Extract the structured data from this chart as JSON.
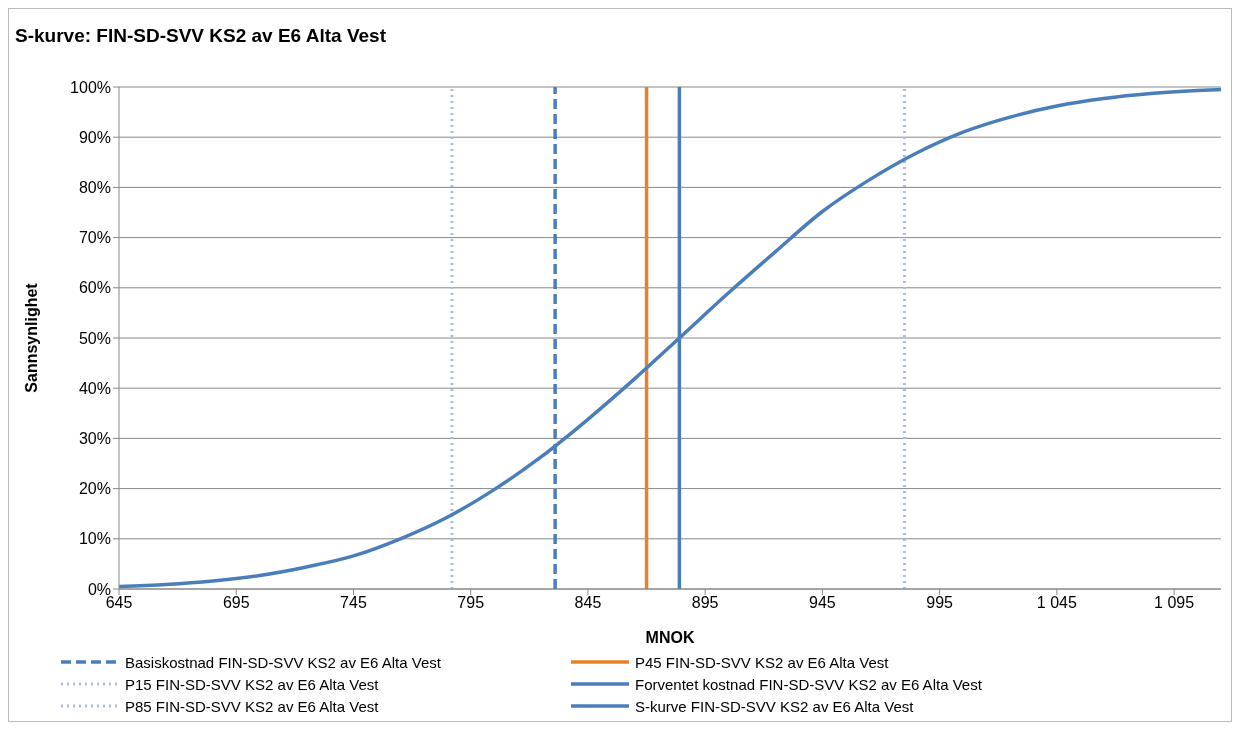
{
  "chart_data": {
    "type": "line",
    "title": "S-kurve: FIN-SD-SVV KS2 av E6 Alta Vest",
    "xlabel": "MNOK",
    "ylabel": "Sannsynlighet",
    "xlim": [
      645,
      1115
    ],
    "xticks": [
      645,
      695,
      745,
      795,
      845,
      895,
      945,
      995,
      {
        "value": 1045,
        "label": "1 045"
      },
      {
        "value": 1095,
        "label": "1 095"
      }
    ],
    "ylim": [
      0,
      100
    ],
    "yticks": [
      {
        "value": 0,
        "label": "0%"
      },
      {
        "value": 10,
        "label": "10%"
      },
      {
        "value": 20,
        "label": "20%"
      },
      {
        "value": 30,
        "label": "30%"
      },
      {
        "value": 40,
        "label": "40%"
      },
      {
        "value": 50,
        "label": "50%"
      },
      {
        "value": 60,
        "label": "60%"
      },
      {
        "value": 70,
        "label": "70%"
      },
      {
        "value": 80,
        "label": "80%"
      },
      {
        "value": 90,
        "label": "90%"
      },
      {
        "value": 100,
        "label": "100%"
      }
    ],
    "grid": "y",
    "legend": "bottom",
    "marker": "none",
    "series": [
      {
        "name": "Basiskostnad FIN-SD-SVV KS2 av E6  Alta Vest",
        "color": "#4a7ebb",
        "line_style": "dashed",
        "x": [
          831,
          831
        ],
        "values": [
          0,
          100
        ]
      },
      {
        "name": "P15 FIN-SD-SVV KS2 av E6  Alta Vest",
        "color": "#a7bfde",
        "line_style": "dotted",
        "x": [
          787,
          787
        ],
        "values": [
          0,
          100
        ]
      },
      {
        "name": "P85 FIN-SD-SVV KS2 av E6  Alta Vest",
        "color": "#a7bfde",
        "line_style": "dotted",
        "x": [
          980,
          980
        ],
        "values": [
          0,
          100
        ]
      },
      {
        "name": "P45 FIN-SD-SVV KS2 av E6  Alta Vest",
        "color": "#e8822a",
        "line_style": "solid",
        "x": [
          870,
          870
        ],
        "values": [
          0,
          100
        ]
      },
      {
        "name": "Forventet kostnad FIN-SD-SVV KS2 av E6  Alta Vest",
        "color": "#4a7ebb",
        "line_style": "solid",
        "x": [
          884,
          884
        ],
        "values": [
          0,
          100
        ]
      },
      {
        "name": "S-kurve FIN-SD-SVV KS2 av E6  Alta Vest",
        "color": "#4a7ebb",
        "line_style": "solid",
        "x": [
          645,
          665,
          685,
          705,
          725,
          745,
          765,
          785,
          805,
          825,
          845,
          865,
          884,
          905,
          925,
          945,
          965,
          985,
          1005,
          1025,
          1045,
          1065,
          1085,
          1105,
          1115
        ],
        "values": [
          0.5,
          0.9,
          1.6,
          2.7,
          4.4,
          6.6,
          10,
          14.3,
          19.8,
          26.3,
          33.8,
          41.9,
          50,
          59,
          67.2,
          75.2,
          81.5,
          86.8,
          91,
          94,
          96.2,
          97.7,
          98.7,
          99.3,
          99.5
        ]
      }
    ]
  }
}
